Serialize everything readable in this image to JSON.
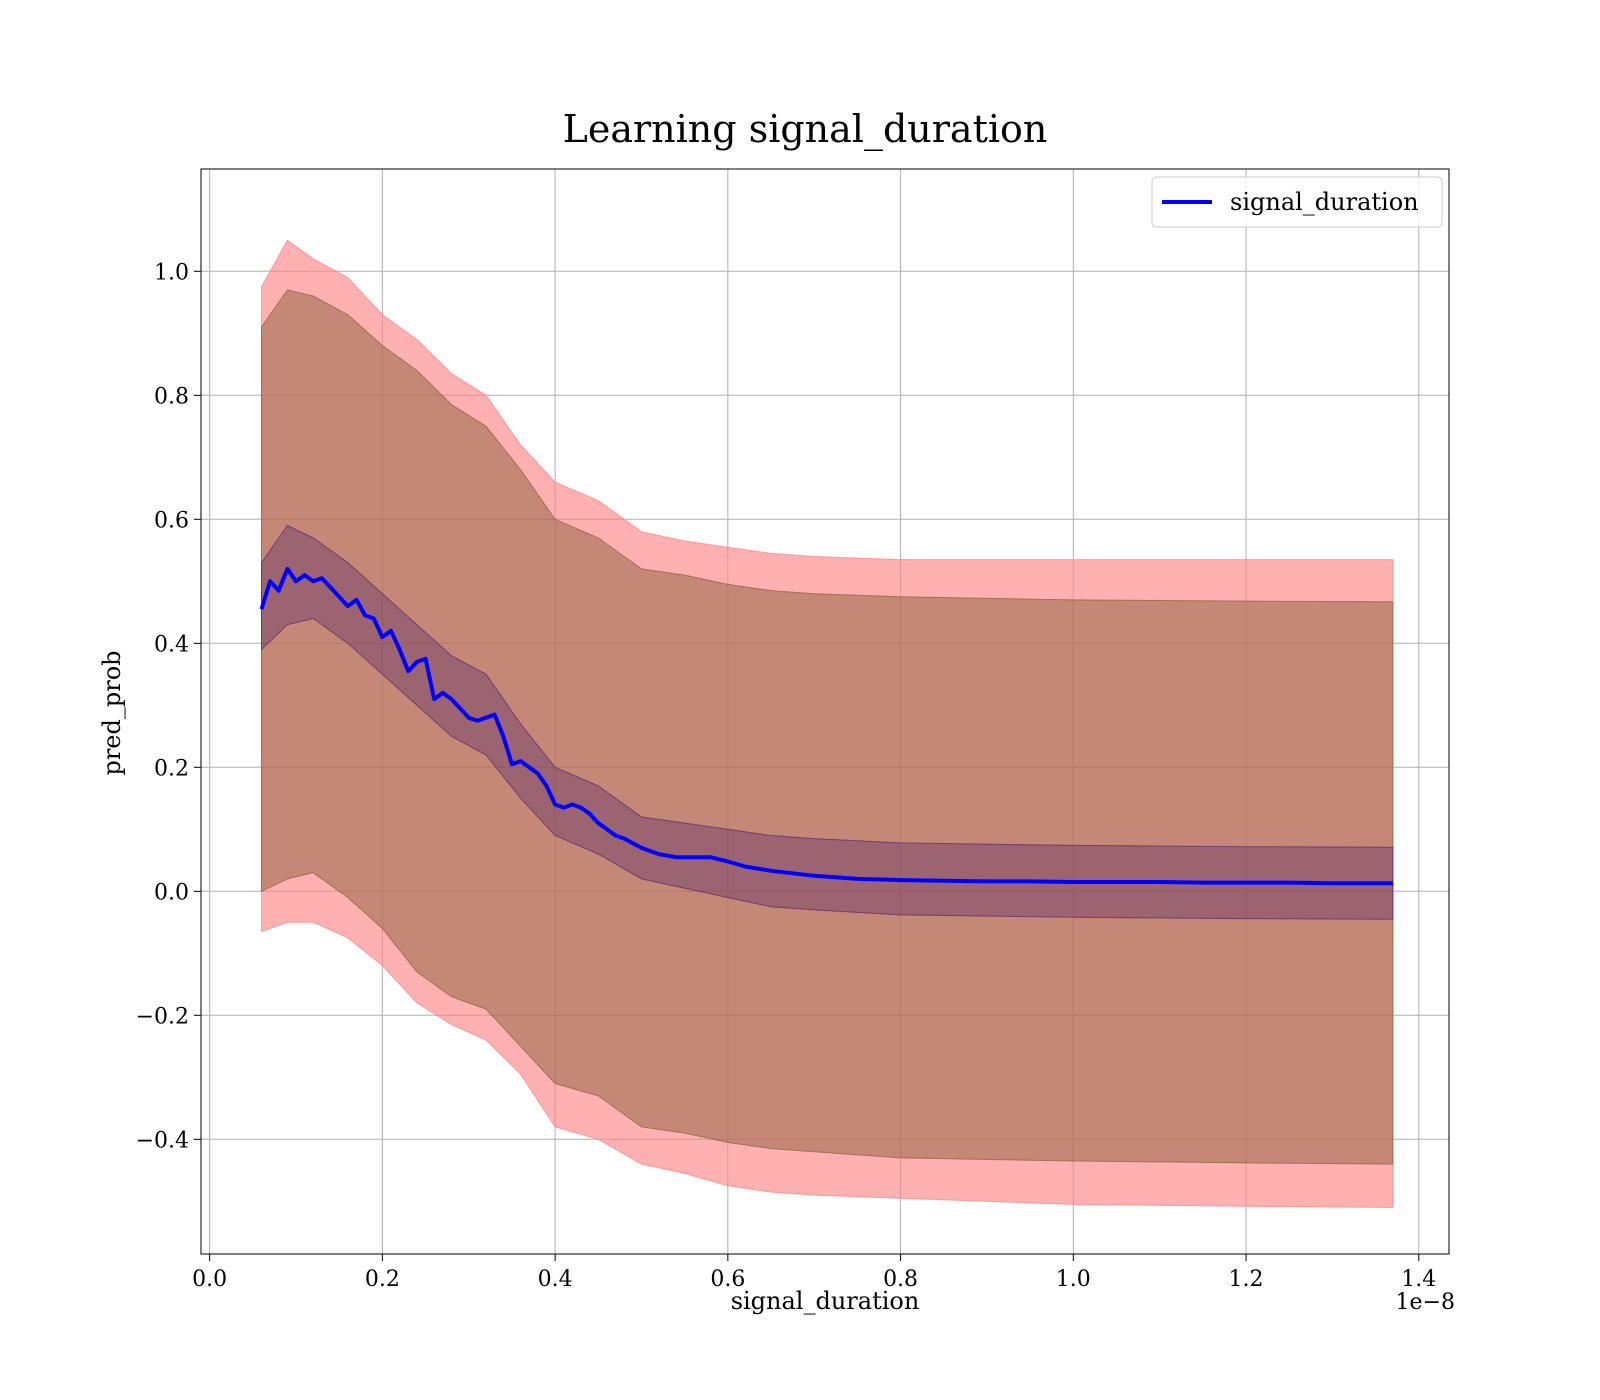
{
  "chart_data": {
    "type": "line",
    "title": "Learning signal_duration",
    "xlabel": "signal_duration",
    "ylabel": "pred_prob",
    "x_offset_label": "1e−8",
    "xlim": [
      -0.01,
      1.435
    ],
    "ylim": [
      -0.585,
      1.165
    ],
    "x_ticks": [
      0.0,
      0.2,
      0.4,
      0.6,
      0.8,
      1.0,
      1.2,
      1.4
    ],
    "x_tick_labels": [
      "0.0",
      "0.2",
      "0.4",
      "0.6",
      "0.8",
      "1.0",
      "1.2",
      "1.4"
    ],
    "y_ticks": [
      -0.4,
      -0.2,
      0.0,
      0.2,
      0.4,
      0.6,
      0.8,
      1.0
    ],
    "y_tick_labels": [
      "−0.4",
      "−0.2",
      "0.0",
      "0.2",
      "0.4",
      "0.6",
      "0.8",
      "1.0"
    ],
    "grid": true,
    "legend": {
      "position": "top-right",
      "entries": [
        "signal_duration"
      ]
    },
    "colors": {
      "line": "#0000ff",
      "outer_band": "#ff8080",
      "inner_band": "#8b5e3c",
      "grid": "#b0b0b0"
    },
    "series": [
      {
        "name": "signal_duration",
        "x": [
          0.06,
          0.07,
          0.08,
          0.09,
          0.1,
          0.11,
          0.12,
          0.13,
          0.14,
          0.15,
          0.16,
          0.17,
          0.18,
          0.19,
          0.2,
          0.21,
          0.22,
          0.23,
          0.24,
          0.25,
          0.26,
          0.27,
          0.28,
          0.29,
          0.3,
          0.31,
          0.32,
          0.33,
          0.34,
          0.35,
          0.36,
          0.37,
          0.38,
          0.39,
          0.4,
          0.41,
          0.42,
          0.43,
          0.44,
          0.45,
          0.46,
          0.47,
          0.48,
          0.5,
          0.52,
          0.54,
          0.56,
          0.58,
          0.6,
          0.62,
          0.65,
          0.7,
          0.75,
          0.8,
          0.85,
          0.9,
          0.95,
          1.0,
          1.05,
          1.1,
          1.15,
          1.2,
          1.25,
          1.3,
          1.37
        ],
        "values": [
          0.455,
          0.5,
          0.485,
          0.52,
          0.5,
          0.51,
          0.5,
          0.505,
          0.49,
          0.475,
          0.46,
          0.47,
          0.445,
          0.44,
          0.41,
          0.42,
          0.39,
          0.355,
          0.37,
          0.375,
          0.31,
          0.32,
          0.31,
          0.295,
          0.28,
          0.275,
          0.28,
          0.285,
          0.25,
          0.205,
          0.21,
          0.2,
          0.19,
          0.17,
          0.14,
          0.135,
          0.14,
          0.135,
          0.125,
          0.11,
          0.1,
          0.09,
          0.085,
          0.07,
          0.06,
          0.055,
          0.055,
          0.055,
          0.048,
          0.04,
          0.033,
          0.025,
          0.02,
          0.018,
          0.017,
          0.016,
          0.016,
          0.015,
          0.015,
          0.015,
          0.014,
          0.014,
          0.014,
          0.013,
          0.013
        ]
      }
    ],
    "bands": [
      {
        "x": [
          0.06,
          0.09,
          0.12,
          0.16,
          0.2,
          0.24,
          0.28,
          0.32,
          0.36,
          0.4,
          0.45,
          0.5,
          0.55,
          0.6,
          0.65,
          0.7,
          0.8,
          1.0,
          1.2,
          1.37
        ],
        "upper": [
          0.975,
          1.05,
          1.02,
          0.99,
          0.93,
          0.89,
          0.835,
          0.8,
          0.72,
          0.66,
          0.63,
          0.58,
          0.565,
          0.555,
          0.545,
          0.54,
          0.535,
          0.535,
          0.535,
          0.535
        ],
        "lower": [
          -0.065,
          -0.05,
          -0.05,
          -0.075,
          -0.12,
          -0.18,
          -0.215,
          -0.24,
          -0.295,
          -0.38,
          -0.4,
          -0.44,
          -0.455,
          -0.475,
          -0.485,
          -0.49,
          -0.495,
          -0.505,
          -0.508,
          -0.51
        ]
      },
      {
        "x": [
          0.06,
          0.09,
          0.12,
          0.16,
          0.2,
          0.24,
          0.28,
          0.32,
          0.36,
          0.4,
          0.45,
          0.5,
          0.55,
          0.6,
          0.65,
          0.7,
          0.8,
          1.0,
          1.2,
          1.37
        ],
        "upper": [
          0.91,
          0.97,
          0.96,
          0.93,
          0.88,
          0.84,
          0.785,
          0.75,
          0.68,
          0.6,
          0.57,
          0.52,
          0.51,
          0.495,
          0.485,
          0.48,
          0.475,
          0.47,
          0.468,
          0.467
        ],
        "lower": [
          0.0,
          0.02,
          0.03,
          -0.01,
          -0.06,
          -0.13,
          -0.17,
          -0.19,
          -0.25,
          -0.31,
          -0.33,
          -0.38,
          -0.39,
          -0.405,
          -0.415,
          -0.42,
          -0.43,
          -0.435,
          -0.438,
          -0.44
        ]
      },
      {
        "x": [
          0.06,
          0.09,
          0.12,
          0.16,
          0.2,
          0.24,
          0.28,
          0.32,
          0.36,
          0.4,
          0.45,
          0.5,
          0.55,
          0.6,
          0.65,
          0.7,
          0.8,
          1.0,
          1.2,
          1.37
        ],
        "upper": [
          0.53,
          0.59,
          0.57,
          0.53,
          0.48,
          0.43,
          0.38,
          0.35,
          0.27,
          0.2,
          0.17,
          0.12,
          0.11,
          0.1,
          0.09,
          0.085,
          0.078,
          0.074,
          0.072,
          0.071
        ],
        "lower": [
          0.39,
          0.43,
          0.44,
          0.4,
          0.35,
          0.3,
          0.25,
          0.22,
          0.15,
          0.09,
          0.06,
          0.02,
          0.005,
          -0.01,
          -0.025,
          -0.03,
          -0.038,
          -0.042,
          -0.044,
          -0.045
        ]
      }
    ]
  }
}
